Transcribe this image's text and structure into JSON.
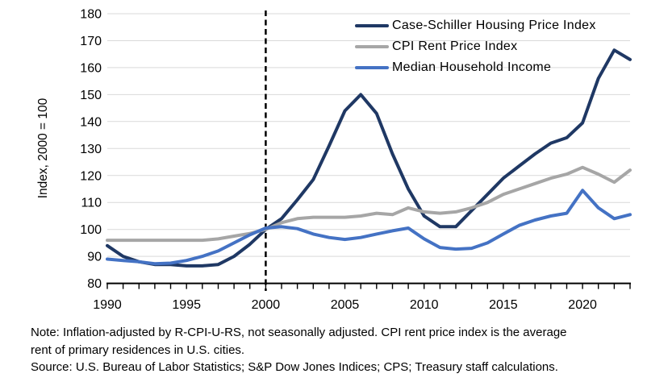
{
  "chart_data": {
    "type": "line",
    "title": "",
    "xlabel": "",
    "ylabel": "Index, 2000 = 100",
    "xlim": [
      1990,
      2023
    ],
    "ylim": [
      80,
      180
    ],
    "grid": "horizontal",
    "gridline_color": "#D9D9D9",
    "axis_color": "#000000",
    "legend_position": "top-right",
    "x": [
      1990,
      1991,
      1992,
      1993,
      1994,
      1995,
      1996,
      1997,
      1998,
      1999,
      2000,
      2001,
      2002,
      2003,
      2004,
      2005,
      2006,
      2007,
      2008,
      2009,
      2010,
      2011,
      2012,
      2013,
      2014,
      2015,
      2016,
      2017,
      2018,
      2019,
      2020,
      2021,
      2022,
      2023
    ],
    "x_tick_labels": [
      1990,
      1995,
      2000,
      2005,
      2010,
      2015,
      2020
    ],
    "y_ticks": [
      80,
      90,
      100,
      110,
      120,
      130,
      140,
      150,
      160,
      170,
      180
    ],
    "reference_line": {
      "x": 2000,
      "style": "dashed",
      "color": "#000000"
    },
    "series": [
      {
        "name": "Case-Schiller Housing Price Index",
        "color": "#1F3864",
        "values": [
          94,
          90,
          88,
          87,
          87,
          86.5,
          86.5,
          87,
          90,
          94.5,
          100,
          104,
          111,
          118.5,
          131,
          144,
          150,
          143,
          128,
          115,
          105,
          101,
          101,
          107,
          113,
          119,
          123.5,
          128,
          132,
          134,
          139.5,
          156,
          166.5,
          163
        ]
      },
      {
        "name": "CPI Rent Price Index",
        "color": "#A6A6A6",
        "values": [
          96,
          96,
          96,
          96,
          96,
          96,
          96,
          96.5,
          97.5,
          98.5,
          100,
          102.5,
          104,
          104.5,
          104.5,
          104.5,
          105,
          106,
          105.5,
          108,
          106.5,
          106,
          106.5,
          108,
          110,
          113,
          115,
          117,
          119,
          120.5,
          123,
          120.5,
          117.5,
          122
        ]
      },
      {
        "name": "Median Household Income",
        "color": "#4472C4",
        "values": [
          89,
          88.5,
          88,
          87.3,
          87.5,
          88.5,
          90,
          92,
          95,
          98,
          100.5,
          101,
          100.3,
          98.3,
          97,
          96.3,
          97,
          98.3,
          99.5,
          100.5,
          96.5,
          93.3,
          92.7,
          93,
          95,
          98.3,
          101.5,
          103.5,
          105,
          106,
          114.5,
          108,
          104,
          105.5
        ]
      }
    ]
  },
  "notes": {
    "note_line1": "Note: Inflation-adjusted by R-CPI-U-RS, not seasonally adjusted. CPI rent price index is the average",
    "note_line2": "rent of primary residences in U.S. cities.",
    "source_line": "Source: U.S. Bureau of Labor Statistics; S&P Dow Jones Indices; CPS; Treasury staff calculations."
  }
}
